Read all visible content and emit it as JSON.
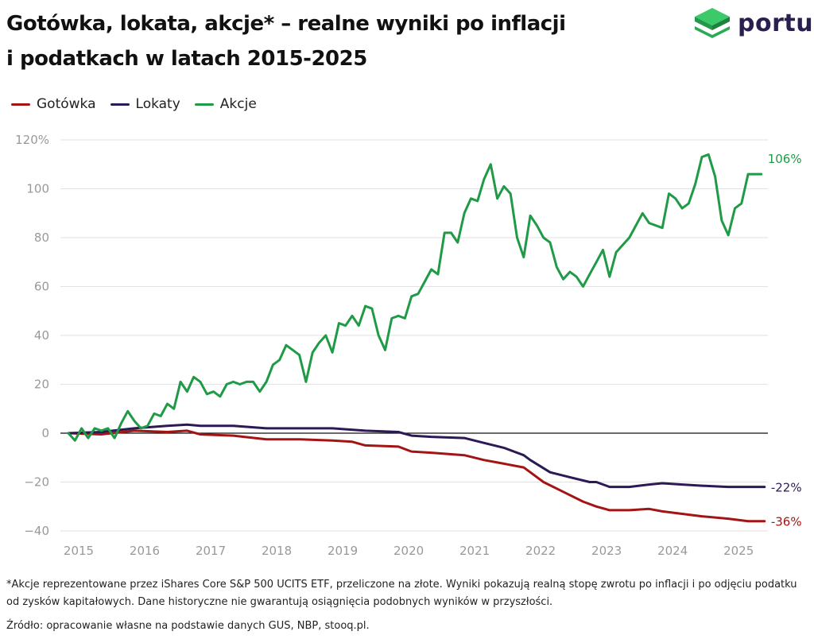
{
  "header": {
    "title_line1": "Gotówka, lokata, akcje* – realne wyniki po inflacji",
    "title_line2": "i podatkach w latach 2015-2025"
  },
  "logo": {
    "text": "portu",
    "color": "#2b1f4f",
    "icon_color": "#26b05a"
  },
  "footer": {
    "footnote": "*Akcje reprezentowane przez iShares Core S&P 500 UCITS ETF, przeliczone na złote. Wyniki pokazują realną stopę zwrotu po inflacji i po odjęciu podatku od zysków kapitałowych. Dane historyczne nie gwarantują osiągnięcia podobnych wyników w przyszłości.",
    "source": "Źródło: opracowanie własne na podstawie danych GUS, NBP, stooq.pl."
  },
  "chart_data": {
    "type": "line",
    "legend_position": "top-left",
    "grid": true,
    "xlim": [
      2015,
      2025.6
    ],
    "ylim": [
      -40,
      120
    ],
    "x_ticks": [
      2015,
      2016,
      2017,
      2018,
      2019,
      2020,
      2021,
      2022,
      2023,
      2024,
      2025
    ],
    "x_tick_labels": [
      "2015",
      "2016",
      "2017",
      "2018",
      "2019",
      "2020",
      "2021",
      "2022",
      "2023",
      "2024",
      "2025"
    ],
    "y_ticks": [
      -40,
      -20,
      0,
      20,
      40,
      60,
      80,
      100,
      120
    ],
    "y_tick_labels": [
      "−40",
      "−20",
      "0",
      "20",
      "40",
      "60",
      "80",
      "100",
      "120%"
    ],
    "series": [
      {
        "name": "Gotówka",
        "color": "#a31515",
        "end_label": "-36%",
        "x": [
          2015.0,
          2015.5,
          2016.0,
          2016.5,
          2016.8,
          2017.0,
          2017.5,
          2018.0,
          2018.5,
          2019.0,
          2019.3,
          2019.5,
          2020.0,
          2020.2,
          2020.5,
          2021.0,
          2021.3,
          2021.6,
          2021.9,
          2022.0,
          2022.2,
          2022.5,
          2022.8,
          2023.0,
          2023.2,
          2023.5,
          2023.8,
          2024.0,
          2024.3,
          2024.6,
          2025.0,
          2025.3,
          2025.55
        ],
        "y": [
          0,
          -0.5,
          1,
          0.5,
          1,
          -0.5,
          -1,
          -2.5,
          -2.5,
          -3,
          -3.5,
          -5,
          -5.5,
          -7.5,
          -8,
          -9,
          -11,
          -12.5,
          -14,
          -16,
          -20,
          -24,
          -28,
          -30,
          -31.5,
          -31.5,
          -31,
          -32,
          -33,
          -34,
          -35,
          -36,
          -36
        ]
      },
      {
        "name": "Lokaty",
        "color": "#2b1a55",
        "end_label": "-22%",
        "x": [
          2015.0,
          2015.5,
          2016.0,
          2016.5,
          2016.8,
          2017.0,
          2017.5,
          2018.0,
          2018.5,
          2019.0,
          2019.5,
          2020.0,
          2020.2,
          2020.5,
          2021.0,
          2021.3,
          2021.6,
          2021.9,
          2022.0,
          2022.3,
          2022.6,
          2022.9,
          2023.0,
          2023.2,
          2023.5,
          2023.8,
          2024.0,
          2024.3,
          2024.6,
          2025.0,
          2025.3,
          2025.55
        ],
        "y": [
          0,
          0.5,
          2,
          3,
          3.5,
          3,
          3,
          2,
          2,
          2,
          1,
          0.5,
          -1,
          -1.5,
          -2,
          -4,
          -6,
          -9,
          -11,
          -16,
          -18,
          -20,
          -20,
          -22,
          -22,
          -21,
          -20.5,
          -21,
          -21.5,
          -22,
          -22,
          -22
        ]
      },
      {
        "name": "Akcje",
        "color": "#1f9a46",
        "end_label": "106%",
        "x": [
          2015.0,
          2015.1,
          2015.2,
          2015.3,
          2015.4,
          2015.5,
          2015.6,
          2015.7,
          2015.8,
          2015.9,
          2016.0,
          2016.1,
          2016.2,
          2016.3,
          2016.4,
          2016.5,
          2016.6,
          2016.7,
          2016.8,
          2016.9,
          2017.0,
          2017.1,
          2017.2,
          2017.3,
          2017.4,
          2017.5,
          2017.6,
          2017.7,
          2017.8,
          2017.9,
          2018.0,
          2018.1,
          2018.2,
          2018.3,
          2018.4,
          2018.5,
          2018.6,
          2018.7,
          2018.8,
          2018.9,
          2019.0,
          2019.1,
          2019.2,
          2019.3,
          2019.4,
          2019.5,
          2019.6,
          2019.7,
          2019.8,
          2019.9,
          2020.0,
          2020.1,
          2020.2,
          2020.3,
          2020.4,
          2020.5,
          2020.6,
          2020.7,
          2020.8,
          2020.9,
          2021.0,
          2021.1,
          2021.2,
          2021.3,
          2021.4,
          2021.5,
          2021.6,
          2021.7,
          2021.8,
          2021.9,
          2022.0,
          2022.1,
          2022.2,
          2022.3,
          2022.4,
          2022.5,
          2022.6,
          2022.7,
          2022.8,
          2022.9,
          2023.0,
          2023.1,
          2023.2,
          2023.3,
          2023.5,
          2023.7,
          2023.8,
          2024.0,
          2024.1,
          2024.2,
          2024.3,
          2024.4,
          2024.5,
          2024.6,
          2024.7,
          2024.8,
          2024.9,
          2025.0,
          2025.1,
          2025.2,
          2025.3,
          2025.4,
          2025.5
        ],
        "y": [
          0,
          -3,
          2,
          -2,
          2,
          1,
          2,
          -2,
          4,
          9,
          5,
          2,
          3,
          8,
          7,
          12,
          10,
          21,
          17,
          23,
          21,
          16,
          17,
          15,
          20,
          21,
          20,
          21,
          21,
          17,
          21,
          28,
          30,
          36,
          34,
          32,
          21,
          33,
          37,
          40,
          33,
          45,
          44,
          48,
          44,
          52,
          51,
          40,
          34,
          47,
          48,
          47,
          56,
          57,
          62,
          67,
          65,
          82,
          82,
          78,
          90,
          96,
          95,
          104,
          110,
          96,
          101,
          98,
          80,
          72,
          89,
          85,
          80,
          78,
          68,
          63,
          66,
          64,
          60,
          65,
          70,
          75,
          64,
          74,
          80,
          90,
          86,
          84,
          98,
          96,
          92,
          94,
          102,
          113,
          114,
          105,
          87,
          81,
          92,
          94,
          106,
          106,
          106
        ]
      }
    ]
  }
}
